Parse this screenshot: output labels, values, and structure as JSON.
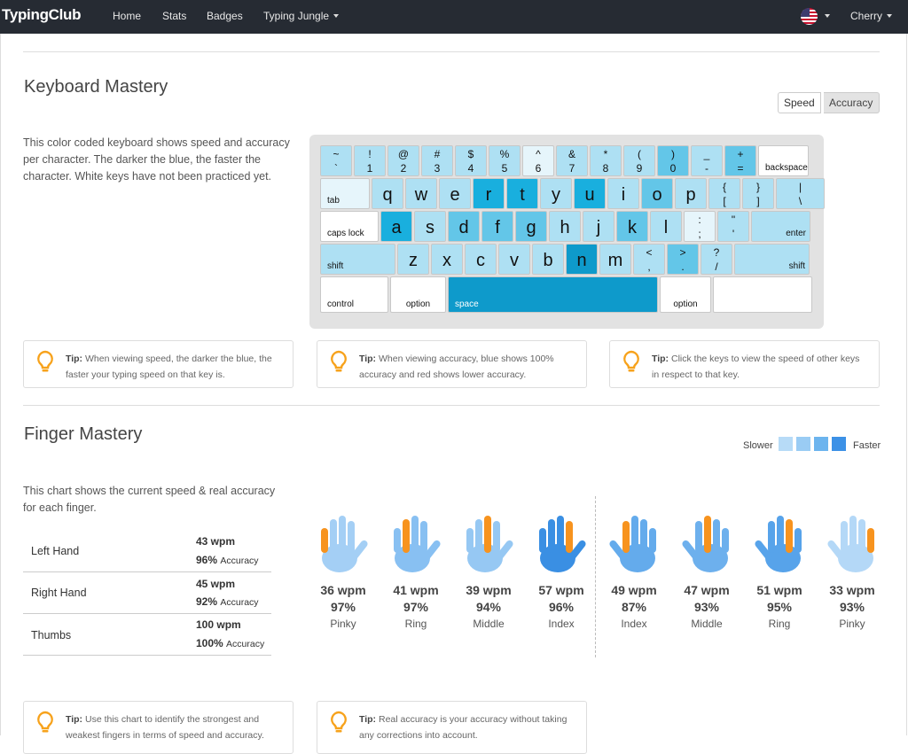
{
  "nav": {
    "brand": "TypingClub",
    "links": [
      "Home",
      "Stats",
      "Badges",
      "Typing Jungle"
    ],
    "user": "Cherry"
  },
  "keyboard_mastery": {
    "title": "Keyboard Mastery",
    "description": "This color coded keyboard shows speed and accuracy per character. The darker the blue, the faster the character. White keys have not been practiced yet.",
    "toggle": [
      "Speed",
      "Accuracy"
    ],
    "active_toggle": "Accuracy",
    "tips": [
      {
        "label": "Tip:",
        "text": "When viewing speed, the darker the blue, the faster your typing speed on that key is."
      },
      {
        "label": "Tip:",
        "text": "When viewing accuracy, blue shows 100% accuracy and red shows lower accuracy."
      },
      {
        "label": "Tip:",
        "text": "Click the keys to view the speed of other keys in respect to that key."
      }
    ]
  },
  "keyboard": {
    "colors": {
      "white": "#ffffff",
      "pale": "#e6f5fb",
      "light": "#aee0f3",
      "mid": "#63c6e8",
      "strong": "#19afde",
      "dark": "#0e9acb"
    },
    "rows": [
      [
        {
          "top": "~",
          "bottom": "`",
          "shade": "light"
        },
        {
          "top": "!",
          "bottom": "1",
          "shade": "light"
        },
        {
          "top": "@",
          "bottom": "2",
          "shade": "light"
        },
        {
          "top": "#",
          "bottom": "3",
          "shade": "light"
        },
        {
          "top": "$",
          "bottom": "4",
          "shade": "light"
        },
        {
          "top": "%",
          "bottom": "5",
          "shade": "light"
        },
        {
          "top": "^",
          "bottom": "6",
          "shade": "pale"
        },
        {
          "top": "&",
          "bottom": "7",
          "shade": "light"
        },
        {
          "top": "*",
          "bottom": "8",
          "shade": "light"
        },
        {
          "top": "(",
          "bottom": "9",
          "shade": "light"
        },
        {
          "top": ")",
          "bottom": "0",
          "shade": "mid"
        },
        {
          "top": "_",
          "bottom": "-",
          "shade": "light"
        },
        {
          "top": "+",
          "bottom": "=",
          "shade": "mid"
        },
        {
          "label": "backspace",
          "shade": "white",
          "align": "left"
        }
      ],
      [
        {
          "label": "tab",
          "shade": "pale",
          "align": "left"
        },
        {
          "main": "q",
          "shade": "light"
        },
        {
          "main": "w",
          "shade": "light"
        },
        {
          "main": "e",
          "shade": "light"
        },
        {
          "main": "r",
          "shade": "strong"
        },
        {
          "main": "t",
          "shade": "strong"
        },
        {
          "main": "y",
          "shade": "light"
        },
        {
          "main": "u",
          "shade": "strong"
        },
        {
          "main": "i",
          "shade": "light"
        },
        {
          "main": "o",
          "shade": "mid"
        },
        {
          "main": "p",
          "shade": "light"
        },
        {
          "top": "{",
          "bottom": "[",
          "shade": "light"
        },
        {
          "top": "}",
          "bottom": "]",
          "shade": "light"
        },
        {
          "top": "|",
          "bottom": "\\",
          "shade": "light"
        }
      ],
      [
        {
          "label": "caps lock",
          "shade": "white",
          "align": "left"
        },
        {
          "main": "a",
          "shade": "strong"
        },
        {
          "main": "s",
          "shade": "light"
        },
        {
          "main": "d",
          "shade": "mid"
        },
        {
          "main": "f",
          "shade": "mid"
        },
        {
          "main": "g",
          "shade": "mid"
        },
        {
          "main": "h",
          "shade": "light"
        },
        {
          "main": "j",
          "shade": "light"
        },
        {
          "main": "k",
          "shade": "mid"
        },
        {
          "main": "l",
          "shade": "light"
        },
        {
          "top": ":",
          "bottom": ";",
          "shade": "pale"
        },
        {
          "top": "\"",
          "bottom": "'",
          "shade": "light"
        },
        {
          "label": "enter",
          "shade": "light",
          "align": "right"
        }
      ],
      [
        {
          "label": "shift",
          "shade": "light",
          "align": "left"
        },
        {
          "main": "z",
          "shade": "light"
        },
        {
          "main": "x",
          "shade": "light"
        },
        {
          "main": "c",
          "shade": "light"
        },
        {
          "main": "v",
          "shade": "light"
        },
        {
          "main": "b",
          "shade": "light"
        },
        {
          "main": "n",
          "shade": "dark"
        },
        {
          "main": "m",
          "shade": "light"
        },
        {
          "top": "<",
          "bottom": ",",
          "shade": "light"
        },
        {
          "top": ">",
          "bottom": ".",
          "shade": "mid"
        },
        {
          "top": "?",
          "bottom": "/",
          "shade": "light"
        },
        {
          "label": "shift",
          "shade": "light",
          "align": "right"
        }
      ],
      [
        {
          "label": "control",
          "shade": "white",
          "align": "left"
        },
        {
          "label": "option",
          "shade": "white",
          "align": "center"
        },
        {
          "label": "space",
          "shade": "dark",
          "align": "left"
        },
        {
          "label": "option",
          "shade": "white",
          "align": "center"
        },
        {
          "label": "",
          "shade": "white",
          "align": "left"
        }
      ]
    ]
  },
  "finger_mastery": {
    "title": "Finger Mastery",
    "legend": {
      "slower": "Slower",
      "faster": "Faster",
      "swatches": [
        "#b7dbf7",
        "#9accf4",
        "#6cb4ee",
        "#3c91e6"
      ]
    },
    "description": "This chart shows the current speed & real accuracy for each finger.",
    "accuracy_word": "Accuracy",
    "hands": [
      {
        "name": "Left Hand",
        "wpm": "43 wpm",
        "accuracy": "96%"
      },
      {
        "name": "Right Hand",
        "wpm": "45 wpm",
        "accuracy": "92%"
      },
      {
        "name": "Thumbs",
        "wpm": "100 wpm",
        "accuracy": "100%"
      }
    ],
    "fingers": [
      {
        "wpm": "36 wpm",
        "accuracy": "97%",
        "name": "Pinky",
        "color": "#a4cff5",
        "highlight": 0,
        "hand": "left"
      },
      {
        "wpm": "41 wpm",
        "accuracy": "97%",
        "name": "Ring",
        "color": "#88c0f2",
        "highlight": 1,
        "hand": "left"
      },
      {
        "wpm": "39 wpm",
        "accuracy": "94%",
        "name": "Middle",
        "color": "#96c8f3",
        "highlight": 2,
        "hand": "left"
      },
      {
        "wpm": "57 wpm",
        "accuracy": "96%",
        "name": "Index",
        "color": "#3a8fe3",
        "highlight": 3,
        "hand": "left"
      },
      {
        "wpm": "49 wpm",
        "accuracy": "87%",
        "name": "Index",
        "color": "#64abec",
        "highlight": 3,
        "hand": "right"
      },
      {
        "wpm": "47 wpm",
        "accuracy": "93%",
        "name": "Middle",
        "color": "#6db0ed",
        "highlight": 2,
        "hand": "right"
      },
      {
        "wpm": "51 wpm",
        "accuracy": "95%",
        "name": "Ring",
        "color": "#57a3ea",
        "highlight": 1,
        "hand": "right"
      },
      {
        "wpm": "33 wpm",
        "accuracy": "93%",
        "name": "Pinky",
        "color": "#b4d8f7",
        "highlight": 0,
        "hand": "right"
      }
    ],
    "highlight_color": "#f7931e",
    "tips": [
      {
        "label": "Tip:",
        "text": "Use this chart to identify the strongest and weakest fingers in terms of speed and accuracy."
      },
      {
        "label": "Tip:",
        "text": "Real accuracy is your accuracy without taking any corrections into account."
      }
    ]
  }
}
